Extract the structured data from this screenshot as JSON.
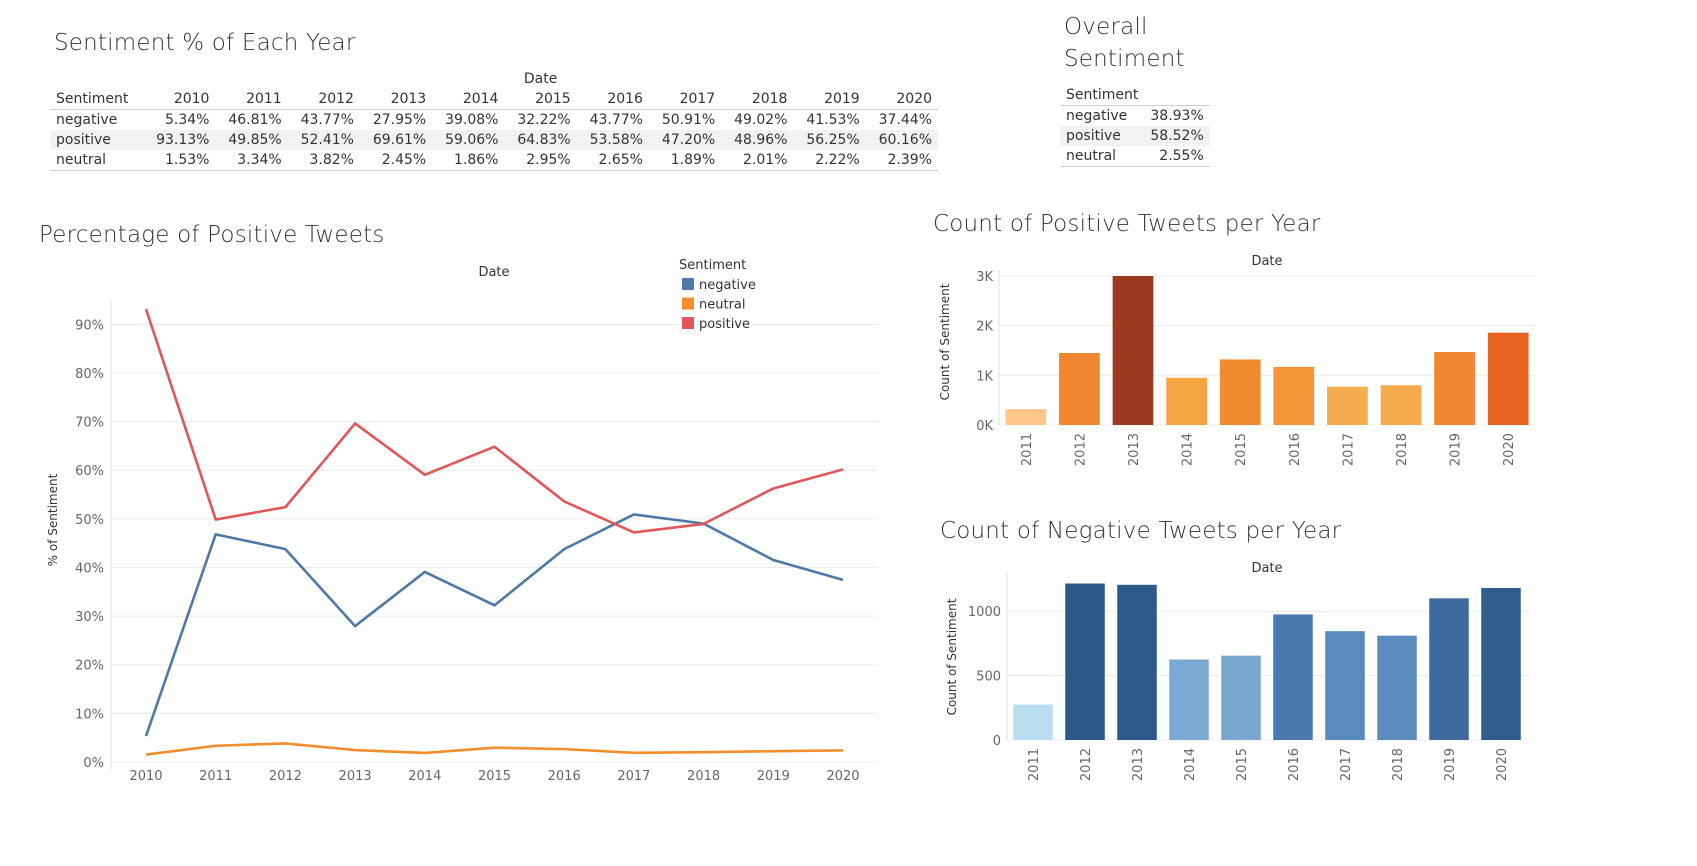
{
  "dashboard": {
    "year_table": {
      "title": "Sentiment % of Each Year",
      "column_group_label": "Date",
      "row_header_label": "Sentiment",
      "years": [
        "2010",
        "2011",
        "2012",
        "2013",
        "2014",
        "2015",
        "2016",
        "2017",
        "2018",
        "2019",
        "2020"
      ],
      "rows": [
        {
          "label": "negative",
          "cells": [
            "5.34%",
            "46.81%",
            "43.77%",
            "27.95%",
            "39.08%",
            "32.22%",
            "43.77%",
            "50.91%",
            "49.02%",
            "41.53%",
            "37.44%"
          ]
        },
        {
          "label": "positive",
          "cells": [
            "93.13%",
            "49.85%",
            "52.41%",
            "69.61%",
            "59.06%",
            "64.83%",
            "53.58%",
            "47.20%",
            "48.96%",
            "56.25%",
            "60.16%"
          ]
        },
        {
          "label": "neutral",
          "cells": [
            "1.53%",
            "3.34%",
            "3.82%",
            "2.45%",
            "1.86%",
            "2.95%",
            "2.65%",
            "1.89%",
            "2.01%",
            "2.22%",
            "2.39%"
          ]
        }
      ]
    },
    "overall_table": {
      "title_line1": "Overall",
      "title_line2": "Sentiment",
      "row_header_label": "Sentiment",
      "rows": [
        {
          "label": "negative",
          "value": "38.93%"
        },
        {
          "label": "positive",
          "value": "58.52%"
        },
        {
          "label": "neutral",
          "value": "2.55%"
        }
      ]
    }
  },
  "chart_data": [
    {
      "id": "line",
      "type": "line",
      "title": "Percentage of Positive Tweets",
      "xlabel": "Date",
      "ylabel": "% of Sentiment",
      "x": [
        "2010",
        "2011",
        "2012",
        "2013",
        "2014",
        "2015",
        "2016",
        "2017",
        "2018",
        "2019",
        "2020"
      ],
      "yticks": [
        0,
        10,
        20,
        30,
        40,
        50,
        60,
        70,
        80,
        90
      ],
      "ytick_labels": [
        "0%",
        "10%",
        "20%",
        "30%",
        "40%",
        "50%",
        "60%",
        "70%",
        "80%",
        "90%"
      ],
      "ylim": [
        0,
        95
      ],
      "grid": true,
      "legend": {
        "title": "Sentiment",
        "position": "top-right"
      },
      "series": [
        {
          "name": "negative",
          "color": "#4e79a7",
          "values": [
            5.34,
            46.81,
            43.77,
            27.95,
            39.08,
            32.22,
            43.77,
            50.91,
            49.02,
            41.53,
            37.44
          ]
        },
        {
          "name": "neutral",
          "color": "#f28e2b",
          "values": [
            1.53,
            3.34,
            3.82,
            2.45,
            1.86,
            2.95,
            2.65,
            1.89,
            2.01,
            2.22,
            2.39
          ]
        },
        {
          "name": "positive",
          "color": "#e15759",
          "values": [
            93.13,
            49.85,
            52.41,
            69.61,
            59.06,
            64.83,
            53.58,
            47.2,
            48.96,
            56.25,
            60.16
          ]
        }
      ]
    },
    {
      "id": "posbar",
      "type": "bar",
      "title": "Count of Positive Tweets per Year",
      "xlabel": "Date",
      "ylabel": "Count of Sentiment",
      "categories": [
        "2011",
        "2012",
        "2013",
        "2014",
        "2015",
        "2016",
        "2017",
        "2018",
        "2019",
        "2020"
      ],
      "values": [
        320,
        1450,
        3000,
        950,
        1320,
        1170,
        770,
        800,
        1470,
        1860
      ],
      "colors": [
        "#ffc88a",
        "#f28630",
        "#9c3a20",
        "#f5a442",
        "#f28a31",
        "#f59537",
        "#f5ad4f",
        "#f5aa4d",
        "#f28630",
        "#e6631f"
      ],
      "yticks": [
        0,
        1000,
        2000,
        3000
      ],
      "ytick_labels": [
        "0K",
        "1K",
        "2K",
        "3K"
      ],
      "ylim": [
        0,
        3000
      ],
      "grid": true
    },
    {
      "id": "negbar",
      "type": "bar",
      "title": "Count of Negative Tweets per Year",
      "xlabel": "Date",
      "ylabel": "Count of Sentiment",
      "categories": [
        "2011",
        "2012",
        "2013",
        "2014",
        "2015",
        "2016",
        "2017",
        "2018",
        "2019",
        "2020"
      ],
      "values": [
        275,
        1215,
        1205,
        625,
        655,
        975,
        845,
        810,
        1100,
        1180
      ],
      "colors": [
        "#b9dcf0",
        "#2b5a89",
        "#2c5a89",
        "#7aaad3",
        "#77a7d0",
        "#4a7aae",
        "#5a8bbe",
        "#5b8cbe",
        "#3d6b9d",
        "#2f5e8f"
      ],
      "yticks": [
        0,
        500,
        1000
      ],
      "ytick_labels": [
        "0",
        "500",
        "1000"
      ],
      "ylim": [
        0,
        1250
      ],
      "grid": true
    }
  ]
}
